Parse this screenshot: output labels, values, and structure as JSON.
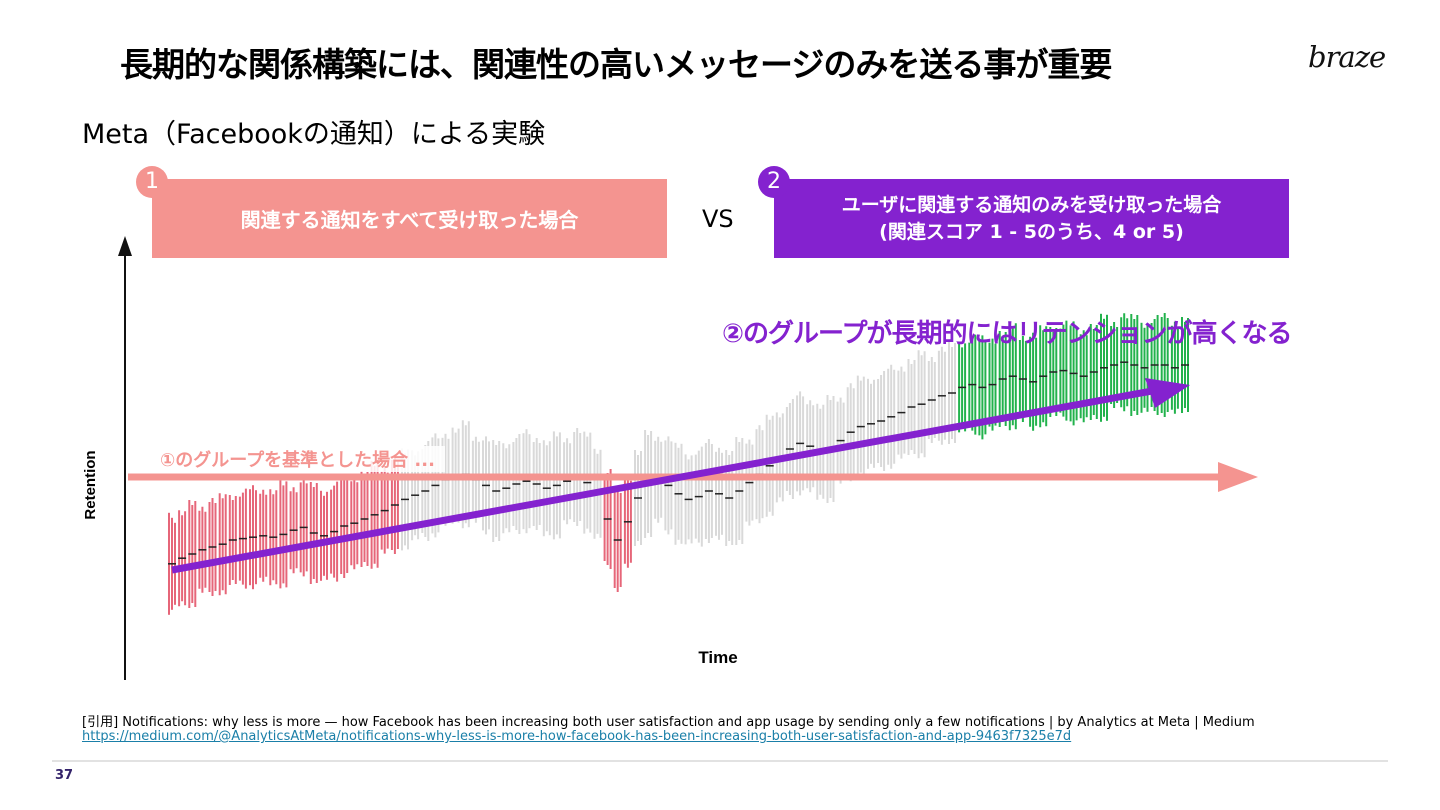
{
  "slide": {
    "title": "長期的な関係構築には、関連性の高いメッセージのみを送る事が重要",
    "logo": "braze",
    "subtitle": "Meta（Facebookの通知）による実験",
    "page_number": "37"
  },
  "panels": {
    "left": {
      "number": "1",
      "label": "関連する通知をすべて受け取った場合",
      "color": "#f49490"
    },
    "vs": "VS",
    "right": {
      "number": "2",
      "label_line1": "ユーザに関連する通知のみを受け取った場合",
      "label_line2": "(関連スコア  1 - 5のうち、4 or 5)",
      "color": "#8422cf"
    }
  },
  "chart_data": {
    "type": "line",
    "xlabel": "Time",
    "ylabel": "Retention",
    "annotations": {
      "baseline_label": "①のグループを基準とした場合 ...",
      "trend_label": "②のグループが長期的にはリテンションが高くなる"
    },
    "colors": {
      "baseline": "#f49490",
      "trend": "#8422cf",
      "below_baseline_bars": "#e66679",
      "neutral_bars": "#d9d9d9",
      "high_bars": "#22b24c"
    },
    "series": [
      {
        "values": [
          -0.62,
          -0.58,
          -0.55,
          -0.52,
          -0.5,
          -0.48,
          -0.45,
          -0.44,
          -0.43,
          -0.42,
          -0.43,
          -0.41,
          -0.38,
          -0.36,
          -0.4,
          -0.42,
          -0.39,
          -0.35,
          -0.33,
          -0.3,
          -0.27,
          -0.24,
          -0.2,
          -0.16,
          -0.13,
          -0.1,
          -0.06,
          -0.02,
          0.01,
          0.02,
          -0.02,
          -0.06,
          -0.1,
          -0.08,
          -0.05,
          -0.03,
          -0.05,
          -0.08,
          -0.06,
          -0.03,
          0.0,
          -0.04,
          -0.12,
          -0.3,
          -0.45,
          -0.32,
          -0.15,
          -0.05,
          -0.02,
          -0.06,
          -0.12,
          -0.16,
          -0.14,
          -0.1,
          -0.12,
          -0.15,
          -0.1,
          -0.04,
          0.02,
          0.08,
          0.14,
          0.2,
          0.24,
          0.22,
          0.18,
          0.2,
          0.26,
          0.32,
          0.36,
          0.38,
          0.4,
          0.43,
          0.46,
          0.5,
          0.52,
          0.55,
          0.58,
          0.6,
          0.64,
          0.66,
          0.64,
          0.66,
          0.7,
          0.72,
          0.7,
          0.68,
          0.72,
          0.75,
          0.76,
          0.74,
          0.72,
          0.75,
          0.78,
          0.8,
          0.82,
          0.8,
          0.78,
          0.8,
          0.8,
          0.78,
          0.8
        ]
      }
    ],
    "baseline_value": 0
  }
}
